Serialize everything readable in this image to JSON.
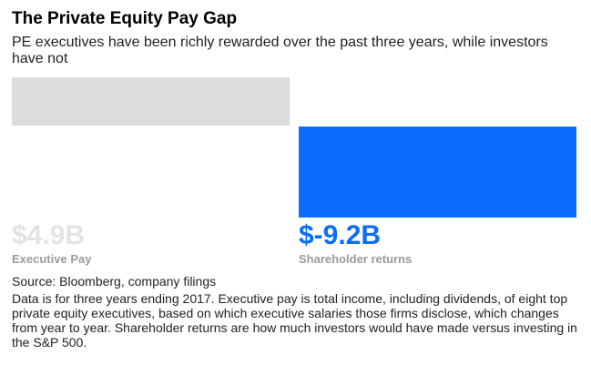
{
  "title": "The Private Equity Pay Gap",
  "subtitle": "PE executives have been richly rewarded over the past three years, while investors have not",
  "chart_data": {
    "type": "bar",
    "categories": [
      "Executive Pay",
      "Shareholder returns"
    ],
    "values": [
      4.9,
      -9.2
    ],
    "value_labels": [
      "$4.9B",
      "$-9.2B"
    ],
    "unit": "billion USD",
    "colors": [
      "#dcdcdc",
      "#0a6dff"
    ],
    "label_colors": [
      "#e3e3e3",
      "#0a6dff"
    ],
    "title": "The Private Equity Pay Gap",
    "grid": false,
    "legend": "none"
  },
  "source": "Source: Bloomberg, company filings",
  "note": "Data is for three years ending 2017. Executive pay is total income, including dividends, of eight top private equity executives, based on which executive salaries those firms disclose, which changes from year to year. Shareholder returns are how much investors would have made versus investing in the S&P 500."
}
